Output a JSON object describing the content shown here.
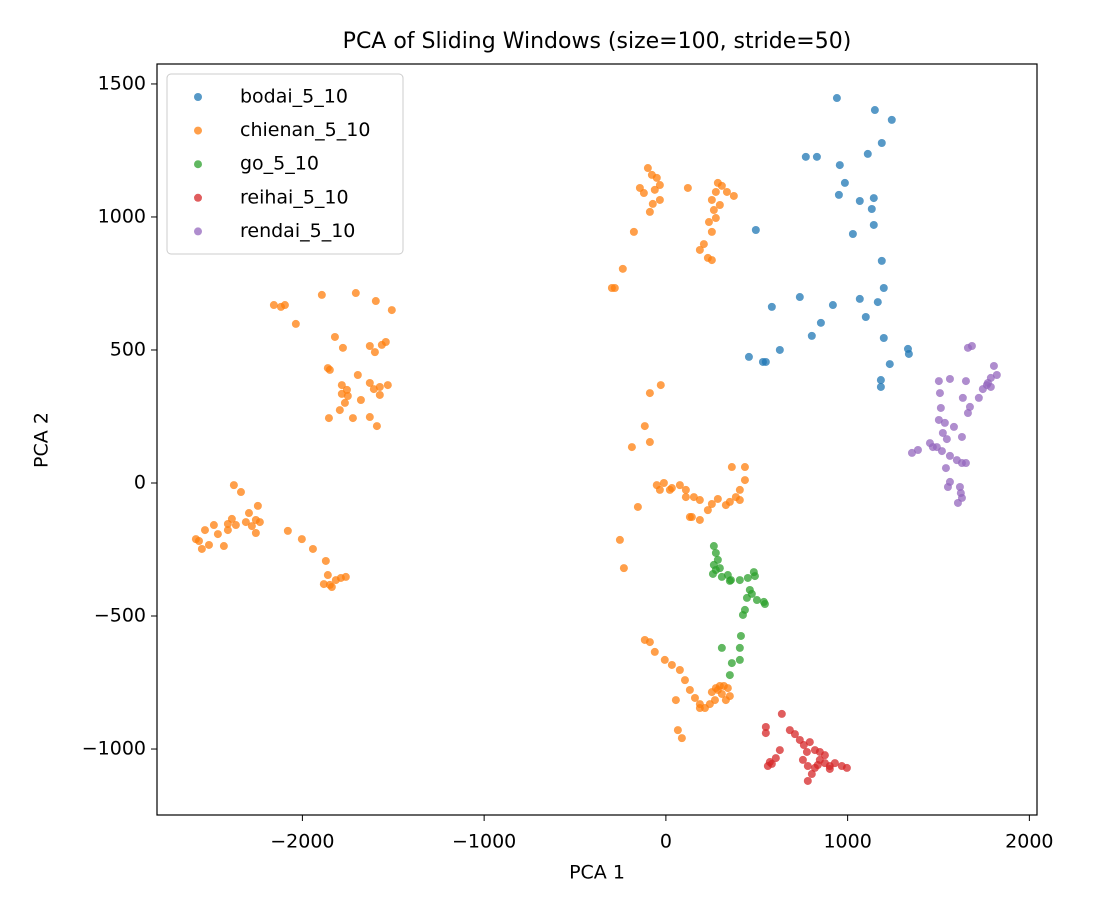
{
  "chart_data": {
    "type": "scatter",
    "title": "PCA of Sliding Windows (size=100, stride=50)",
    "x_label": "PCA 1",
    "y_label": "PCA 2",
    "xlim": [
      -2800,
      2042
    ],
    "ylim": [
      -1248,
      1575
    ],
    "xticks": [
      {
        "value": -2000,
        "label": "−2000"
      },
      {
        "value": -1000,
        "label": "−1000"
      },
      0,
      1000,
      2000
    ],
    "yticks": [
      {
        "value": -1000,
        "label": "−1000"
      },
      {
        "value": -500,
        "label": "−500"
      },
      0,
      500,
      1000,
      1500
    ],
    "legend": "upper left",
    "grid": false,
    "series": [
      {
        "name": "bodai_5_10",
        "color": "#1f77b4",
        "x": [
          941,
          1150,
          1243,
          1111,
          770,
          831,
          957,
          1188,
          985,
          952,
          1067,
          1144,
          1133,
          495,
          1029,
          1144,
          1188,
          737,
          583,
          919,
          1067,
          1199,
          1166,
          1100,
          853,
          803,
          1199,
          627,
          457,
          534,
          550,
          1332,
          1337,
          1232,
          1183,
          1183
        ],
        "values": [
          1447,
          1402,
          1365,
          1237,
          1226,
          1226,
          1195,
          1278,
          1128,
          1083,
          1060,
          1071,
          1030,
          951,
          936,
          970,
          835,
          699,
          662,
          669,
          692,
          733,
          680,
          624,
          602,
          553,
          545,
          500,
          474,
          455,
          455,
          504,
          485,
          447,
          387,
          361
        ]
      },
      {
        "name": "chienan_5_10",
        "color": "#ff7f0e",
        "x": [
          -99,
          -77,
          -50,
          -33,
          -61,
          -143,
          -121,
          -33,
          -72,
          -88,
          121,
          286,
          308,
          275,
          336,
          374,
          253,
          297,
          264,
          275,
          237,
          253,
          209,
          231,
          253,
          187,
          -176,
          -237,
          -297,
          -281,
          -2157,
          -2118,
          -2096,
          -2036,
          -1893,
          -1706,
          -1596,
          -1508,
          -1821,
          -1777,
          -1629,
          -1601,
          -1563,
          -1541,
          -1860,
          -1849,
          -1695,
          -1783,
          -1755,
          -1629,
          -1607,
          -1574,
          -1530,
          -1783,
          -1750,
          -1794,
          -1766,
          -1722,
          -1854,
          -1629,
          -1590,
          -1574,
          -1678,
          -2586,
          -2553,
          -2569,
          -2536,
          -2514,
          -2487,
          -2465,
          -2432,
          -2410,
          -2410,
          -2388,
          -2377,
          -2338,
          -2294,
          -2278,
          -2256,
          -2245,
          -2256,
          -2234,
          -2311,
          -2366,
          -2080,
          -2003,
          -1942,
          -1871,
          -1860,
          -1849,
          -1838,
          -1816,
          -1788,
          -1761,
          -1882,
          -28,
          -88,
          -116,
          -88,
          -187,
          -154,
          -253,
          -231,
          -50,
          -33,
          -11,
          33,
          77,
          110,
          110,
          154,
          132,
          187,
          253,
          286,
          352,
          385,
          407,
          435,
          435,
          363,
          407,
          143,
          187,
          231,
          330,
          22,
          -116,
          -88,
          -61,
          -6,
          33,
          77,
          105,
          132,
          160,
          187,
          242,
          215,
          270,
          286,
          275,
          308,
          330,
          253,
          297,
          319,
          55,
          66,
          88,
          187,
          341,
          352
        ],
        "values": [
          1184,
          1158,
          1147,
          1120,
          1102,
          1109,
          1090,
          1064,
          1049,
          1019,
          1109,
          1128,
          1117,
          1094,
          1094,
          1079,
          1064,
          1045,
          1026,
          996,
          981,
          944,
          898,
          846,
          838,
          876,
          944,
          805,
          733,
          733,
          669,
          662,
          669,
          598,
          707,
          714,
          684,
          650,
          549,
          508,
          515,
          492,
          519,
          530,
          432,
          425,
          406,
          368,
          350,
          376,
          353,
          361,
          368,
          335,
          327,
          274,
          301,
          244,
          244,
          248,
          214,
          331,
          312,
          -211,
          -248,
          -218,
          -177,
          -233,
          -158,
          -192,
          -237,
          -177,
          -154,
          -135,
          -8,
          -34,
          -113,
          -162,
          -139,
          -86,
          -188,
          -147,
          -147,
          -158,
          -180,
          -211,
          -248,
          -293,
          -346,
          -383,
          -391,
          -365,
          -357,
          -353,
          -380,
          368,
          338,
          214,
          154,
          135,
          -90,
          -214,
          -320,
          -8,
          -26,
          0,
          -19,
          -8,
          -26,
          -53,
          -53,
          -128,
          -64,
          -79,
          -60,
          -71,
          -53,
          -26,
          11,
          60,
          60,
          -64,
          -128,
          -139,
          -102,
          -83,
          -26,
          -590,
          -598,
          -635,
          -665,
          -684,
          -703,
          -741,
          -778,
          -808,
          -831,
          -831,
          -846,
          -816,
          -778,
          -771,
          -793,
          -816,
          -786,
          -763,
          -763,
          -816,
          -929,
          -959,
          -846,
          -771,
          -801
        ]
      },
      {
        "name": "go_5_10",
        "color": "#2ca02c",
        "x": [
          264,
          275,
          286,
          264,
          297,
          259,
          275,
          308,
          341,
          358,
          407,
          451,
          484,
          490,
          462,
          446,
          435,
          424,
          473,
          501,
          539,
          545,
          413,
          407,
          363,
          352,
          407,
          308,
          352
        ],
        "values": [
          -237,
          -263,
          -289,
          -308,
          -320,
          -342,
          -327,
          -353,
          -346,
          -365,
          -365,
          -357,
          -335,
          -350,
          -402,
          -432,
          -477,
          -496,
          -417,
          -440,
          -447,
          -455,
          -575,
          -620,
          -677,
          -722,
          -665,
          -620,
          -368
        ]
      },
      {
        "name": "reihai_5_10",
        "color": "#d62728",
        "x": [
          550,
          550,
          638,
          682,
          710,
          737,
          759,
          776,
          754,
          781,
          627,
          605,
          572,
          561,
          583,
          820,
          847,
          875,
          847,
          875,
          902,
          930,
          968,
          996,
          820,
          803,
          781,
          902,
          836,
          792
        ],
        "values": [
          -917,
          -940,
          -868,
          -929,
          -944,
          -966,
          -985,
          -1011,
          -1041,
          -1064,
          -1004,
          -1034,
          -1049,
          -1064,
          -1056,
          -1004,
          -1011,
          -1023,
          -1041,
          -1053,
          -1064,
          -1053,
          -1064,
          -1071,
          -1071,
          -1094,
          -1120,
          -1075,
          -1060,
          -974
        ]
      },
      {
        "name": "rendai_5_10",
        "color": "#9467bd",
        "x": [
          1502,
          1563,
          1651,
          1508,
          1634,
          1513,
          1673,
          1722,
          1744,
          1766,
          1788,
          1805,
          1821,
          1772,
          1684,
          1662,
          1788,
          1535,
          1502,
          1524,
          1546,
          1453,
          1469,
          1491,
          1387,
          1354,
          1519,
          1563,
          1541,
          1601,
          1629,
          1651,
          1563,
          1552,
          1618,
          1623,
          1629,
          1607,
          1629,
          1585,
          1662
        ],
        "values": [
          383,
          391,
          383,
          338,
          320,
          282,
          286,
          320,
          353,
          368,
          395,
          440,
          406,
          376,
          515,
          508,
          361,
          226,
          237,
          188,
          165,
          150,
          135,
          135,
          124,
          113,
          120,
          102,
          56,
          86,
          75,
          75,
          4,
          -15,
          -15,
          -38,
          -56,
          -75,
          173,
          211,
          263
        ]
      }
    ]
  }
}
